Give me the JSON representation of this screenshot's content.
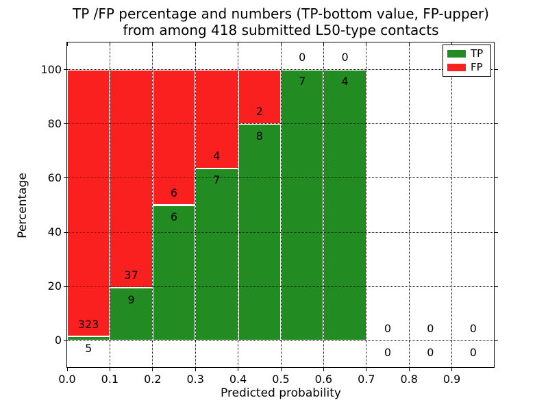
{
  "title": {
    "line1": "TP /FP percentage and numbers (TP-bottom value, FP-upper)",
    "line2": "from among 418 submitted L50-type contacts"
  },
  "chart_data": {
    "type": "bar",
    "stacked": true,
    "title": "TP /FP percentage and numbers (TP-bottom value, FP-upper) from among 418 submitted L50-type contacts",
    "xlabel": "Predicted probability",
    "ylabel": "Percentage",
    "xlim": [
      0.0,
      1.0
    ],
    "ylim": [
      -10,
      110
    ],
    "grid": true,
    "total_contacts_shown_in_title": 418,
    "xtick_labels": [
      "0.0",
      "0.1",
      "0.2",
      "0.3",
      "0.4",
      "0.5",
      "0.6",
      "0.7",
      "0.8",
      "0.9"
    ],
    "ytick_values": [
      0,
      20,
      40,
      60,
      80,
      100
    ],
    "colors": {
      "tp": "#228b22",
      "fp": "#fb2020"
    },
    "legend": {
      "position": "upper right",
      "items": [
        {
          "label": "TP",
          "key": "tp",
          "color": "#228b22"
        },
        {
          "label": "FP",
          "key": "fp",
          "color": "#fb2020"
        }
      ]
    },
    "bins": [
      {
        "range": [
          0.0,
          0.1
        ],
        "tp": 5,
        "fp": 323
      },
      {
        "range": [
          0.1,
          0.2
        ],
        "tp": 9,
        "fp": 37
      },
      {
        "range": [
          0.2,
          0.3
        ],
        "tp": 6,
        "fp": 6
      },
      {
        "range": [
          0.3,
          0.4
        ],
        "tp": 7,
        "fp": 4
      },
      {
        "range": [
          0.4,
          0.5
        ],
        "tp": 8,
        "fp": 2
      },
      {
        "range": [
          0.5,
          0.6
        ],
        "tp": 7,
        "fp": 0
      },
      {
        "range": [
          0.6,
          0.7
        ],
        "tp": 4,
        "fp": 0
      },
      {
        "range": [
          0.7,
          0.8
        ],
        "tp": 0,
        "fp": 0
      },
      {
        "range": [
          0.8,
          0.9
        ],
        "tp": 0,
        "fp": 0
      },
      {
        "range": [
          0.9,
          1.0
        ],
        "tp": 0,
        "fp": 0
      }
    ]
  }
}
